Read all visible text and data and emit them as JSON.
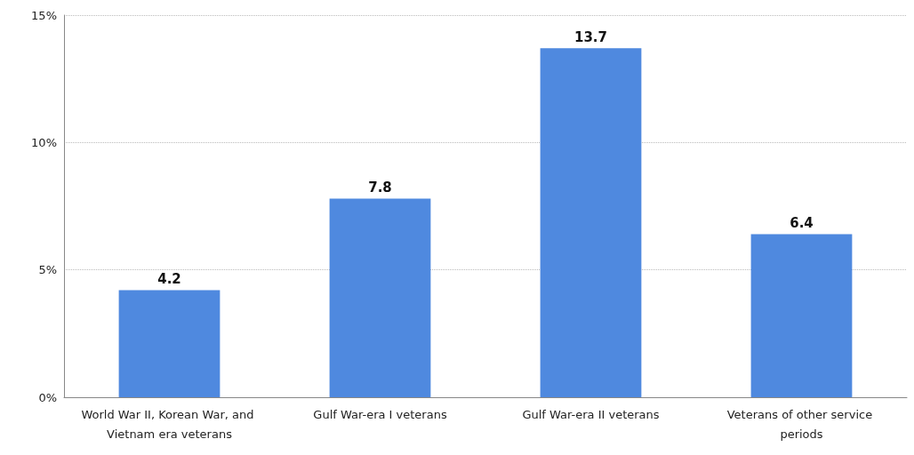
{
  "chart_data": {
    "type": "bar",
    "categories": [
      "World War II, Korean War, and Vietnam era veterans",
      "Gulf War-era I veterans",
      "Gulf War-era II veterans",
      "Veterans of other service periods"
    ],
    "values": [
      4.2,
      7.8,
      13.7,
      6.4
    ],
    "color": "#4f89df",
    "ylim": [
      0,
      15
    ],
    "yticks": [
      {
        "value": 0,
        "label": "0%"
      },
      {
        "value": 5,
        "label": "5%"
      },
      {
        "value": 10,
        "label": "10%"
      },
      {
        "value": 15,
        "label": "15%"
      }
    ],
    "grid": "y",
    "data_labels": true
  }
}
